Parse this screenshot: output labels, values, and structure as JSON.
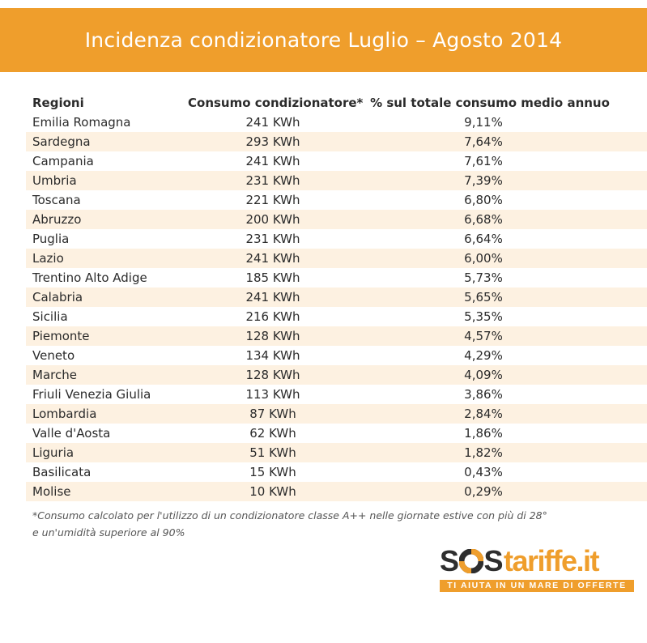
{
  "title": "Incidenza condizionatore Luglio – Agosto 2014",
  "table": {
    "headers": [
      "Regioni",
      "Consumo condizionatore*",
      "% sul totale consumo medio annuo"
    ],
    "rows": [
      [
        "Emilia Romagna",
        "241 KWh",
        "9,11%"
      ],
      [
        "Sardegna",
        "293 KWh",
        "7,64%"
      ],
      [
        "Campania",
        "241 KWh",
        "7,61%"
      ],
      [
        "Umbria",
        "231 KWh",
        "7,39%"
      ],
      [
        "Toscana",
        "221 KWh",
        "6,80%"
      ],
      [
        "Abruzzo",
        "200 KWh",
        "6,68%"
      ],
      [
        "Puglia",
        "231 KWh",
        "6,64%"
      ],
      [
        "Lazio",
        "241 KWh",
        "6,00%"
      ],
      [
        "Trentino Alto Adige",
        "185 KWh",
        "5,73%"
      ],
      [
        "Calabria",
        "241 KWh",
        "5,65%"
      ],
      [
        "Sicilia",
        "216 KWh",
        "5,35%"
      ],
      [
        "Piemonte",
        "128 KWh",
        "4,57%"
      ],
      [
        "Veneto",
        "134 KWh",
        "4,29%"
      ],
      [
        "Marche",
        "128 KWh",
        "4,09%"
      ],
      [
        "Friuli Venezia Giulia",
        "113 KWh",
        "3,86%"
      ],
      [
        "Lombardia",
        "87 KWh",
        "2,84%"
      ],
      [
        "Valle d'Aosta",
        "62 KWh",
        "1,86%"
      ],
      [
        "Liguria",
        "51 KWh",
        "1,82%"
      ],
      [
        "Basilicata",
        "15 KWh",
        "0,43%"
      ],
      [
        "Molise",
        "10 KWh",
        "0,29%"
      ]
    ]
  },
  "footnote": {
    "line1": "*Consumo calcolato per l'utilizzo di un condizionatore classe A++ nelle giornate estive con più di 28°",
    "line2": "e un'umidità superiore al 90%"
  },
  "logo": {
    "s1": "S",
    "s2": "S",
    "brand": "tariffe.it",
    "tagline": "TI AIUTA IN UN MARE DI OFFERTE",
    "icon": "lifebuoy-icon"
  },
  "colors": {
    "accent": "#ef9e2c",
    "row_alt": "#fdf1e1",
    "text": "#2b2b2b"
  }
}
